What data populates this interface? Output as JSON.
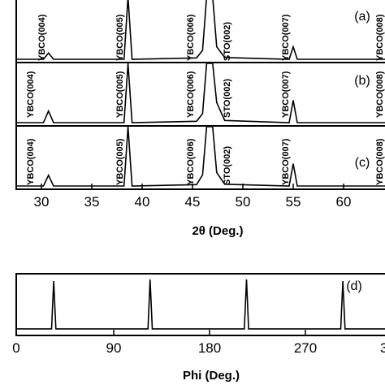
{
  "chart_data": [
    {
      "type": "line",
      "xlabel": "2θ (Deg.)",
      "ylabel": "",
      "xlim": [
        27.5,
        66
      ],
      "xticks": [
        30,
        35,
        40,
        45,
        50,
        55,
        60
      ],
      "grid": false,
      "stack_order": [
        "(a)",
        "(b)",
        "(c)"
      ],
      "peaks_2theta": {
        "YBCO(004)": 30.7,
        "YBCO(005)": 38.6,
        "YBCO(006)": 46.4,
        "STO(002)": 46.8,
        "YBCO(007)": 55.0
      },
      "series": [
        {
          "name": "(a)",
          "x": [
            27.5,
            30.2,
            30.7,
            31.2,
            38.2,
            38.6,
            39.0,
            45.4,
            46.0,
            46.4,
            46.6,
            46.8,
            47.0,
            47.4,
            48.2,
            54.6,
            55.0,
            55.4,
            66
          ],
          "y": [
            0,
            0,
            0.14,
            0,
            0,
            1.4,
            0,
            0.03,
            0.2,
            1.4,
            1.4,
            1.4,
            1.4,
            0.28,
            0.04,
            0,
            0.28,
            0,
            0
          ]
        },
        {
          "name": "(b)",
          "x": [
            27.5,
            30.2,
            30.7,
            31.2,
            38.2,
            38.6,
            39.0,
            45.4,
            46.0,
            46.4,
            46.6,
            46.8,
            47.0,
            47.4,
            48.2,
            54.6,
            55.0,
            55.4,
            66
          ],
          "y": [
            0,
            0,
            0.26,
            0,
            0,
            1.4,
            0,
            0.03,
            0.2,
            1.4,
            1.4,
            1.4,
            1.4,
            0.45,
            0.05,
            0,
            0.5,
            0,
            0
          ]
        },
        {
          "name": "(c)",
          "x": [
            27.5,
            30.2,
            30.7,
            31.2,
            38.2,
            38.6,
            39.0,
            45.4,
            46.0,
            46.4,
            46.6,
            46.8,
            47.0,
            47.4,
            48.2,
            54.6,
            55.0,
            55.4,
            66
          ],
          "y": [
            0,
            0,
            0.24,
            0,
            0,
            1.4,
            0,
            0.03,
            0.25,
            1.4,
            1.4,
            1.4,
            1.4,
            0.3,
            0.04,
            0,
            0.5,
            0,
            0
          ]
        }
      ]
    },
    {
      "type": "line",
      "xlabel": "Phi (Deg.)",
      "ylabel": "",
      "xlim": [
        0,
        360
      ],
      "xticks": [
        0,
        90,
        180,
        270
      ],
      "grid": false,
      "series": [
        {
          "name": "(d)",
          "x": [
            0,
            33,
            35,
            37,
            123,
            125,
            127,
            213,
            215,
            217,
            303,
            305,
            307,
            360
          ],
          "y": [
            0.05,
            0.05,
            1,
            0.05,
            0.05,
            1.03,
            0.05,
            0.05,
            1.03,
            0.05,
            0.05,
            1.0,
            0.05,
            0.05
          ]
        }
      ]
    }
  ],
  "labels": {
    "panel_a": "(a)",
    "panel_b": "(b)",
    "panel_c": "(c)",
    "panel_d": "(d)",
    "xlabel_top": "2θ (Deg.)",
    "xlabel_bottom": "Phi (Deg.)",
    "a": {
      "ybco004": "YBCO(004)",
      "ybco005": "YBCO(005)",
      "ybco006": "YBCO(006)",
      "sto002": "STO(002)",
      "ybco007": "YBCO(007)",
      "ybco008": "YBCO(008)"
    },
    "b": {
      "ybco004": "YBCO(004)",
      "ybco005": "YBCO(005)",
      "ybco006": "YBCO(006)",
      "sto002": "STO(002)",
      "ybco007": "YBCO(007)",
      "ybco008": "YBCO(008)"
    },
    "c": {
      "ybco004": "YBCO(004)",
      "ybco005": "YBCO(005)",
      "ybco006": "YBCO(006)",
      "sto002": "STO(002)",
      "ybco007": "YBCO(007)",
      "ybco008": "YBCO(008)"
    }
  },
  "ticks_top": [
    "30",
    "35",
    "40",
    "45",
    "50",
    "55",
    "60"
  ],
  "ticks_bottom": [
    "0",
    "90",
    "180",
    "270",
    "3"
  ]
}
